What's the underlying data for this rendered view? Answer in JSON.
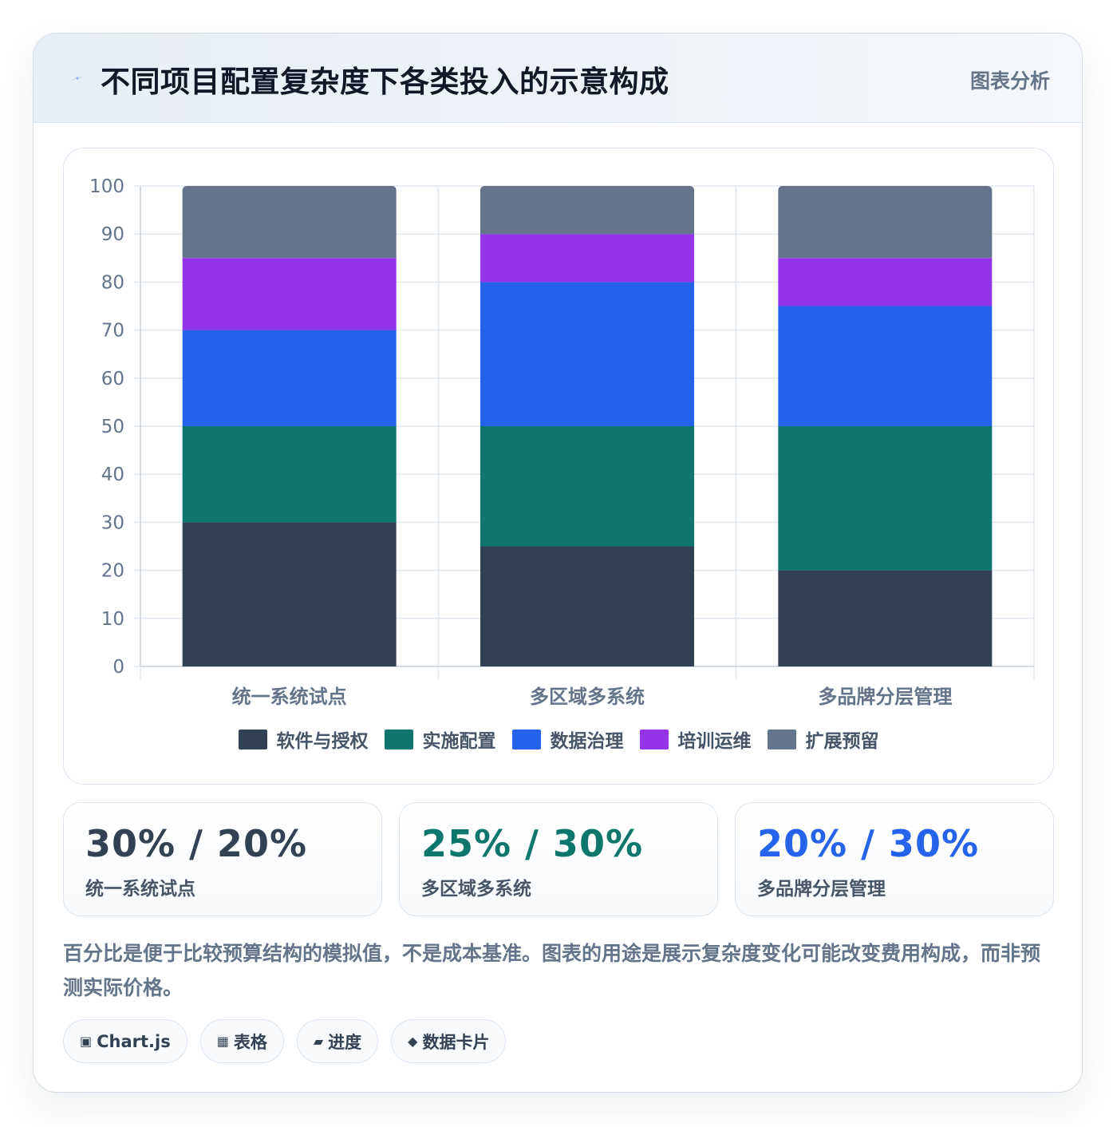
{
  "header": {
    "icon": "lightning-icon",
    "title": "不同项目配置复杂度下各类投入的示意构成",
    "badge": "图表分析"
  },
  "chart_data": {
    "type": "bar",
    "stacked": true,
    "categories": [
      "统一系统试点",
      "多区域多系统",
      "多品牌分层管理"
    ],
    "series": [
      {
        "name": "软件与授权",
        "color": "#334155",
        "values": [
          30,
          25,
          20
        ]
      },
      {
        "name": "实施配置",
        "color": "#0f766e",
        "values": [
          20,
          25,
          30
        ]
      },
      {
        "name": "数据治理",
        "color": "#2563eb",
        "values": [
          20,
          30,
          25
        ]
      },
      {
        "name": "培训运维",
        "color": "#9333ea",
        "values": [
          15,
          10,
          10
        ]
      },
      {
        "name": "扩展预留",
        "color": "#64748b",
        "values": [
          15,
          10,
          15
        ]
      }
    ],
    "yticks": [
      0,
      10,
      20,
      30,
      40,
      50,
      60,
      70,
      80,
      90,
      100
    ],
    "ylim": [
      0,
      100
    ],
    "grid": true,
    "legend": "bottom",
    "title": "",
    "xlabel": "",
    "ylabel": ""
  },
  "stats": [
    {
      "value": "30% / 20%",
      "label": "统一系统试点",
      "color": "#334155"
    },
    {
      "value": "25% / 30%",
      "label": "多区域多系统",
      "color": "#0f766e"
    },
    {
      "value": "20% / 30%",
      "label": "多品牌分层管理",
      "color": "#2563eb"
    }
  ],
  "note": "百分比是便于比较预算结构的模拟值，不是成本基准。图表的用途是展示复杂度变化可能改变费用构成，而非预测实际价格。",
  "chips": [
    {
      "icon": "▣",
      "label": "Chart.js"
    },
    {
      "icon": "▦",
      "label": "表格"
    },
    {
      "icon": "▰",
      "label": "进度"
    },
    {
      "icon": "◆",
      "label": "数据卡片"
    }
  ]
}
